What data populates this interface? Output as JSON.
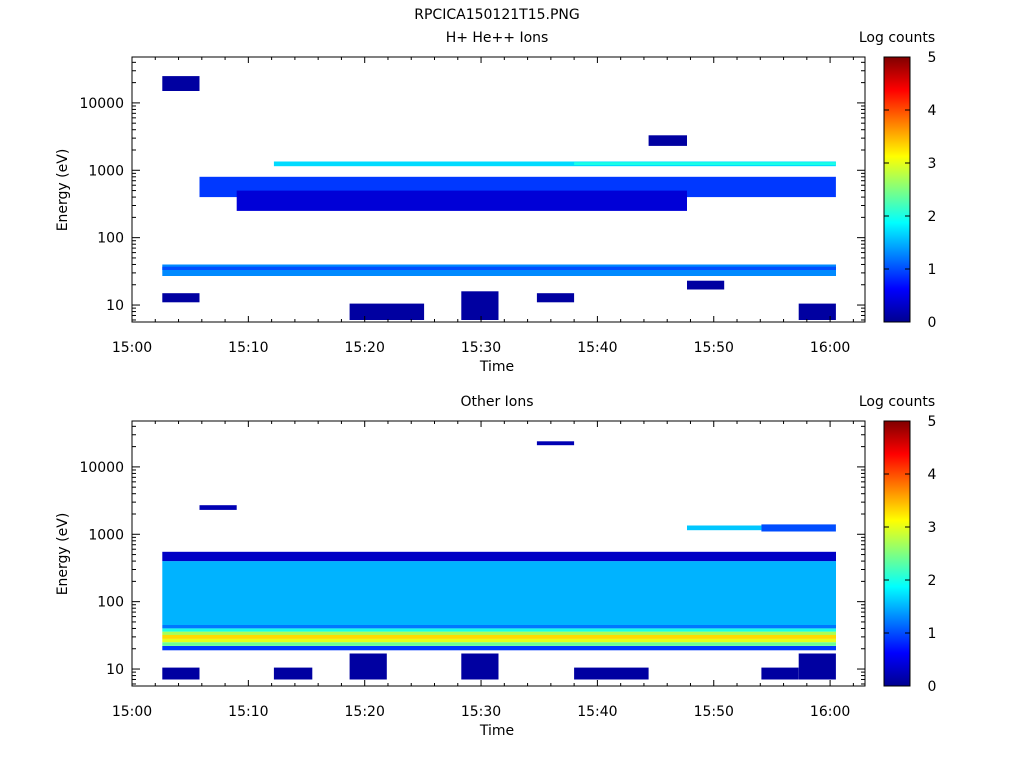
{
  "figure_title": "RPCICA150121T15.PNG",
  "colormap": [
    "#00008f",
    "#0000ff",
    "#0080ff",
    "#00ffff",
    "#80ff80",
    "#ffff00",
    "#ff8000",
    "#ff0000",
    "#800000"
  ],
  "chart_data": [
    {
      "type": "heatmap",
      "title": "H+ He++ Ions",
      "xlabel": "Time",
      "ylabel": "Energy (eV)",
      "x_ticks": [
        "15:00",
        "15:10",
        "15:20",
        "15:30",
        "15:40",
        "15:50",
        "16:00"
      ],
      "x_range_minutes": [
        0,
        63
      ],
      "y_scale": "log",
      "y_ticks": [
        {
          "value": 10,
          "label": "10"
        },
        {
          "value": 100,
          "label": "100"
        },
        {
          "value": 1000,
          "label": "1000"
        },
        {
          "value": 10000,
          "label": "10000"
        }
      ],
      "ylim": [
        5.6,
        48000
      ],
      "colorbar": {
        "label": "Log counts",
        "range": [
          0,
          5
        ],
        "ticks": [
          "0",
          "1",
          "2",
          "3",
          "4",
          "5"
        ]
      },
      "time_bins_minutes": [
        [
          2.6,
          5.8
        ],
        [
          5.8,
          9.0
        ],
        [
          9.0,
          12.2
        ],
        [
          12.2,
          15.5
        ],
        [
          15.5,
          18.7
        ],
        [
          18.7,
          21.9
        ],
        [
          21.9,
          25.1
        ],
        [
          25.1,
          28.3
        ],
        [
          28.3,
          31.5
        ],
        [
          31.5,
          34.8
        ],
        [
          34.8,
          38.0
        ],
        [
          38.0,
          41.2
        ],
        [
          41.2,
          44.4
        ],
        [
          44.4,
          47.7
        ],
        [
          47.7,
          50.9
        ],
        [
          50.9,
          54.1
        ],
        [
          54.1,
          57.3
        ],
        [
          57.3,
          60.5
        ]
      ],
      "cells": [
        {
          "t_bin": [
            0,
            18
          ],
          "energy": [
            27,
            40
          ],
          "log_counts": 1.3
        },
        {
          "t_bin": [
            0,
            18
          ],
          "energy": [
            33,
            37
          ],
          "log_counts": 1.0
        },
        {
          "t_bin": [
            3,
            18
          ],
          "energy": [
            1150,
            1350
          ],
          "log_counts": 1.7
        },
        {
          "t_bin": [
            11,
            18
          ],
          "energy": [
            1200,
            1320
          ],
          "log_counts": 2.0
        },
        {
          "t_bin": [
            1,
            18
          ],
          "energy": [
            400,
            800
          ],
          "log_counts": 0.9
        },
        {
          "t_bin": [
            2,
            14
          ],
          "energy": [
            250,
            500
          ],
          "log_counts": 0.4
        },
        {
          "t_bin": [
            0,
            1
          ],
          "energy": [
            11,
            15
          ],
          "log_counts": 0.1
        },
        {
          "t_bin": [
            5,
            7
          ],
          "energy": [
            6,
            10.5
          ],
          "log_counts": 0.1
        },
        {
          "t_bin": [
            8,
            9
          ],
          "energy": [
            6,
            16
          ],
          "log_counts": 0.1
        },
        {
          "t_bin": [
            10,
            11
          ],
          "energy": [
            11,
            15
          ],
          "log_counts": 0.1
        },
        {
          "t_bin": [
            14,
            15
          ],
          "energy": [
            17,
            23
          ],
          "log_counts": 0.1
        },
        {
          "t_bin": [
            17,
            18
          ],
          "energy": [
            6,
            10.5
          ],
          "log_counts": 0.1
        },
        {
          "t_bin": [
            0,
            1
          ],
          "energy": [
            15000,
            25000
          ],
          "log_counts": 0.1
        },
        {
          "t_bin": [
            13,
            14
          ],
          "energy": [
            2300,
            3300
          ],
          "log_counts": 0.1
        }
      ]
    },
    {
      "type": "heatmap",
      "title": "Other Ions",
      "xlabel": "Time",
      "ylabel": "Energy (eV)",
      "x_ticks": [
        "15:00",
        "15:10",
        "15:20",
        "15:30",
        "15:40",
        "15:50",
        "16:00"
      ],
      "x_range_minutes": [
        0,
        63
      ],
      "y_scale": "log",
      "y_ticks": [
        {
          "value": 10,
          "label": "10"
        },
        {
          "value": 100,
          "label": "100"
        },
        {
          "value": 1000,
          "label": "1000"
        },
        {
          "value": 10000,
          "label": "10000"
        }
      ],
      "ylim": [
        5.6,
        48000
      ],
      "colorbar": {
        "label": "Log counts",
        "range": [
          0,
          5
        ],
        "ticks": [
          "0",
          "1",
          "2",
          "3",
          "4",
          "5"
        ]
      },
      "time_bins_minutes": [
        [
          2.6,
          5.8
        ],
        [
          5.8,
          9.0
        ],
        [
          9.0,
          12.2
        ],
        [
          12.2,
          15.5
        ],
        [
          15.5,
          18.7
        ],
        [
          18.7,
          21.9
        ],
        [
          21.9,
          25.1
        ],
        [
          25.1,
          28.3
        ],
        [
          28.3,
          31.5
        ],
        [
          31.5,
          34.8
        ],
        [
          34.8,
          38.0
        ],
        [
          38.0,
          41.2
        ],
        [
          41.2,
          44.4
        ],
        [
          44.4,
          47.7
        ],
        [
          47.7,
          50.9
        ],
        [
          50.9,
          54.1
        ],
        [
          54.1,
          57.3
        ],
        [
          57.3,
          60.5
        ]
      ],
      "cells": [
        {
          "t_bin": [
            0,
            18
          ],
          "energy": [
            19,
            22
          ],
          "log_counts": 0.9
        },
        {
          "t_bin": [
            0,
            18
          ],
          "energy": [
            22,
            25
          ],
          "log_counts": 2.4
        },
        {
          "t_bin": [
            0,
            18
          ],
          "energy": [
            25,
            28
          ],
          "log_counts": 3.0
        },
        {
          "t_bin": [
            0,
            18
          ],
          "energy": [
            28,
            32
          ],
          "log_counts": 3.3
        },
        {
          "t_bin": [
            0,
            18
          ],
          "energy": [
            32,
            36
          ],
          "log_counts": 2.7
        },
        {
          "t_bin": [
            0,
            18
          ],
          "energy": [
            36,
            40
          ],
          "log_counts": 2.0
        },
        {
          "t_bin": [
            0,
            18
          ],
          "energy": [
            40,
            45
          ],
          "log_counts": 1.2
        },
        {
          "t_bin": [
            0,
            18
          ],
          "energy": [
            45,
            400
          ],
          "log_counts": 1.5
        },
        {
          "t_bin": [
            0,
            18
          ],
          "energy": [
            400,
            550
          ],
          "log_counts": 0.3
        },
        {
          "t_bin": [
            16,
            18
          ],
          "energy": [
            1100,
            1400
          ],
          "log_counts": 1.0
        },
        {
          "t_bin": [
            14,
            16
          ],
          "energy": [
            1150,
            1350
          ],
          "log_counts": 1.6
        },
        {
          "t_bin": [
            1,
            2
          ],
          "energy": [
            2300,
            2700
          ],
          "log_counts": 0.2
        },
        {
          "t_bin": [
            10,
            11
          ],
          "energy": [
            21000,
            24000
          ],
          "log_counts": 0.2
        },
        {
          "t_bin": [
            0,
            1
          ],
          "energy": [
            7,
            10.5
          ],
          "log_counts": 0.1
        },
        {
          "t_bin": [
            3,
            4
          ],
          "energy": [
            7,
            10.5
          ],
          "log_counts": 0.1
        },
        {
          "t_bin": [
            5,
            6
          ],
          "energy": [
            7,
            17
          ],
          "log_counts": 0.1
        },
        {
          "t_bin": [
            8,
            9
          ],
          "energy": [
            7,
            17
          ],
          "log_counts": 0.1
        },
        {
          "t_bin": [
            11,
            13
          ],
          "energy": [
            7,
            10.5
          ],
          "log_counts": 0.1
        },
        {
          "t_bin": [
            16,
            17
          ],
          "energy": [
            7,
            10.5
          ],
          "log_counts": 0.1
        },
        {
          "t_bin": [
            17,
            18
          ],
          "energy": [
            7,
            17
          ],
          "log_counts": 0.1
        }
      ]
    }
  ]
}
